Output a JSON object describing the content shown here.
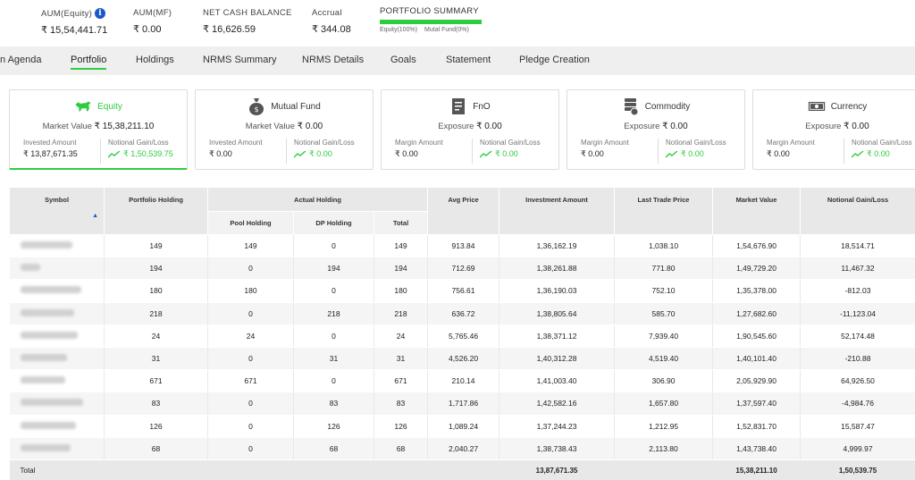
{
  "summary": {
    "aum_equity": {
      "label": "AUM(Equity)",
      "value": "₹ 15,54,441.71"
    },
    "aum_mf": {
      "label": "AUM(MF)",
      "value": "₹ 0.00"
    },
    "net_cash": {
      "label": "NET CASH BALANCE",
      "value": "₹ 16,626.59"
    },
    "accrual": {
      "label": "Accrual",
      "value": "₹ 344.08"
    },
    "portfolio_summary": {
      "title": "PORTFOLIO SUMMARY",
      "equity_pct": "Equity(100%)",
      "mf_pct": "Mutal Fund(0%)",
      "equity_share": 1.0,
      "bar_color": "#2ecc40"
    }
  },
  "nav": {
    "tabs": [
      "n Agenda",
      "Portfolio",
      "Holdings",
      "NRMS Summary",
      "NRMS Details",
      "Goals",
      "Statement",
      "Pledge Creation"
    ],
    "active": "Portfolio"
  },
  "cards": [
    {
      "title": "Equity",
      "icon": "bull-icon",
      "value_label": "Market Value",
      "value": "₹ 15,38,211.10",
      "left_label": "Invested Amount",
      "left_value": "₹ 13,87,671.35",
      "right_label": "Notional Gain/Loss",
      "right_value": "₹ 1,50,539.75"
    },
    {
      "title": "Mutual Fund",
      "icon": "money-bag-icon",
      "value_label": "Market Value",
      "value": "₹ 0.00",
      "left_label": "Invested Amount",
      "left_value": "₹ 0.00",
      "right_label": "Notional Gain/Loss",
      "right_value": "₹ 0.00"
    },
    {
      "title": "FnO",
      "icon": "document-icon",
      "value_label": "Exposure",
      "value": "₹ 0.00",
      "left_label": "Margin Amount",
      "left_value": "₹ 0.00",
      "right_label": "Notional Gain/Loss",
      "right_value": "₹ 0.00"
    },
    {
      "title": "Commodity",
      "icon": "coin-stack-icon",
      "value_label": "Exposure",
      "value": "₹ 0.00",
      "left_label": "Margin Amount",
      "left_value": "₹ 0.00",
      "right_label": "Notional Gain/Loss",
      "right_value": "₹ 0.00"
    },
    {
      "title": "Currency",
      "icon": "banknote-icon",
      "value_label": "Exposure",
      "value": "₹ 0.00",
      "left_label": "Margin Amount",
      "left_value": "₹ 0.00",
      "right_label": "Notional Gain/Loss",
      "right_value": "₹ 0.00"
    }
  ],
  "table": {
    "headers": {
      "symbol": "Symbol",
      "portfolio_holding": "Portfolio Holding",
      "actual_holding": "Actual Holding",
      "pool_holding": "Pool Holding",
      "dp_holding": "DP Holding",
      "total": "Total",
      "avg_price": "Avg Price",
      "investment_amount": "Investment Amount",
      "last_trade_price": "Last Trade Price",
      "market_value": "Market Value",
      "notional": "Notional Gain/Loss"
    },
    "rows": [
      [
        "",
        "149",
        "149",
        "0",
        "149",
        "913.84",
        "1,36,162.19",
        "1,038.10",
        "1,54,676.90",
        "18,514.71"
      ],
      [
        "",
        "194",
        "0",
        "194",
        "194",
        "712.69",
        "1,38,261.88",
        "771.80",
        "1,49,729.20",
        "11,467.32"
      ],
      [
        "",
        "180",
        "180",
        "0",
        "180",
        "756.61",
        "1,36,190.03",
        "752.10",
        "1,35,378.00",
        "-812.03"
      ],
      [
        "",
        "218",
        "0",
        "218",
        "218",
        "636.72",
        "1,38,805.64",
        "585.70",
        "1,27,682.60",
        "-11,123.04"
      ],
      [
        "",
        "24",
        "24",
        "0",
        "24",
        "5,765.46",
        "1,38,371.12",
        "7,939.40",
        "1,90,545.60",
        "52,174.48"
      ],
      [
        "",
        "31",
        "0",
        "31",
        "31",
        "4,526.20",
        "1,40,312.28",
        "4,519.40",
        "1,40,101.40",
        "-210.88"
      ],
      [
        "",
        "671",
        "671",
        "0",
        "671",
        "210.14",
        "1,41,003.40",
        "306.90",
        "2,05,929.90",
        "64,926.50"
      ],
      [
        "",
        "83",
        "0",
        "83",
        "83",
        "1,717.86",
        "1,42,582.16",
        "1,657.80",
        "1,37,597.40",
        "-4,984.76"
      ],
      [
        "",
        "126",
        "0",
        "126",
        "126",
        "1,089.24",
        "1,37,244.23",
        "1,212.95",
        "1,52,831.70",
        "15,587.47"
      ],
      [
        "",
        "68",
        "0",
        "68",
        "68",
        "2,040.27",
        "1,38,738.43",
        "2,113.80",
        "1,43,738.40",
        "4,999.97"
      ]
    ],
    "total": {
      "label": "Total",
      "investment": "13,87,671.35",
      "market_value": "15,38,211.10",
      "notional": "1,50,539.75"
    }
  },
  "colors": {
    "accent_green": "#2ecc40",
    "info_blue": "#1a58c7"
  }
}
